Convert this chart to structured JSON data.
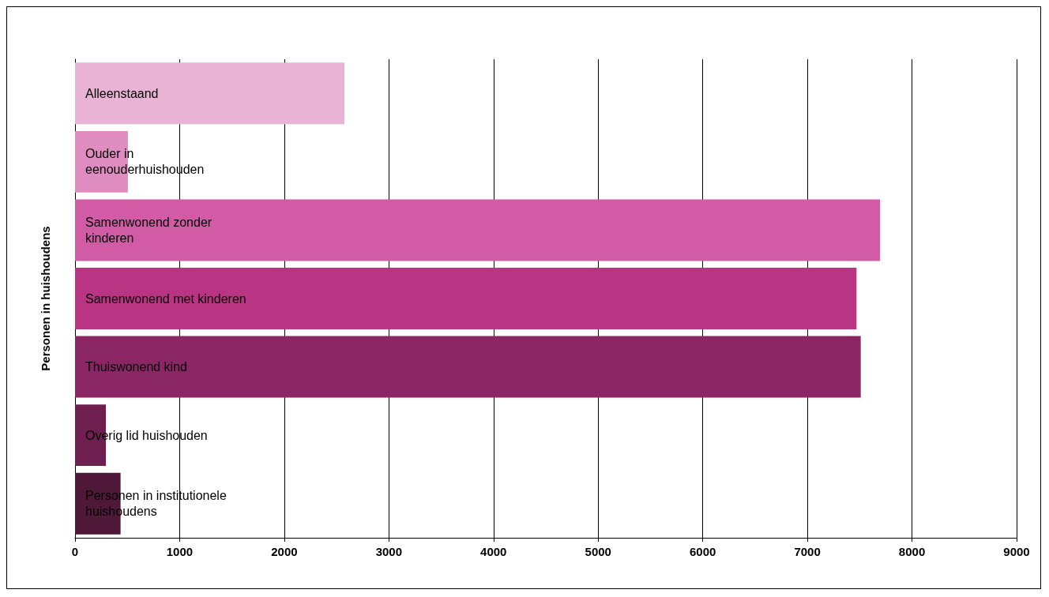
{
  "chart_data": {
    "type": "bar",
    "orientation": "horizontal",
    "ylabel": "Personen in huishoudens",
    "categories": [
      "Alleenstaand",
      "Ouder in eenouderhuishouden",
      "Samenwonend zonder kinderen",
      "Samenwonend met kinderen",
      "Thuiswonend kind",
      "Overig lid huishouden",
      "Personen in institutionele huishoudens"
    ],
    "values": [
      2575,
      505,
      7695,
      7470,
      7510,
      295,
      435
    ],
    "colors": [
      "#e8b3d5",
      "#df8cc0",
      "#d15ca5",
      "#b93482",
      "#8b2664",
      "#6f1e50",
      "#4f1838"
    ],
    "xlim": [
      0,
      9000
    ],
    "xticks": [
      0,
      1000,
      2000,
      3000,
      4000,
      5000,
      6000,
      7000,
      8000,
      9000
    ],
    "grid": "x",
    "tick_labels": "x"
  }
}
